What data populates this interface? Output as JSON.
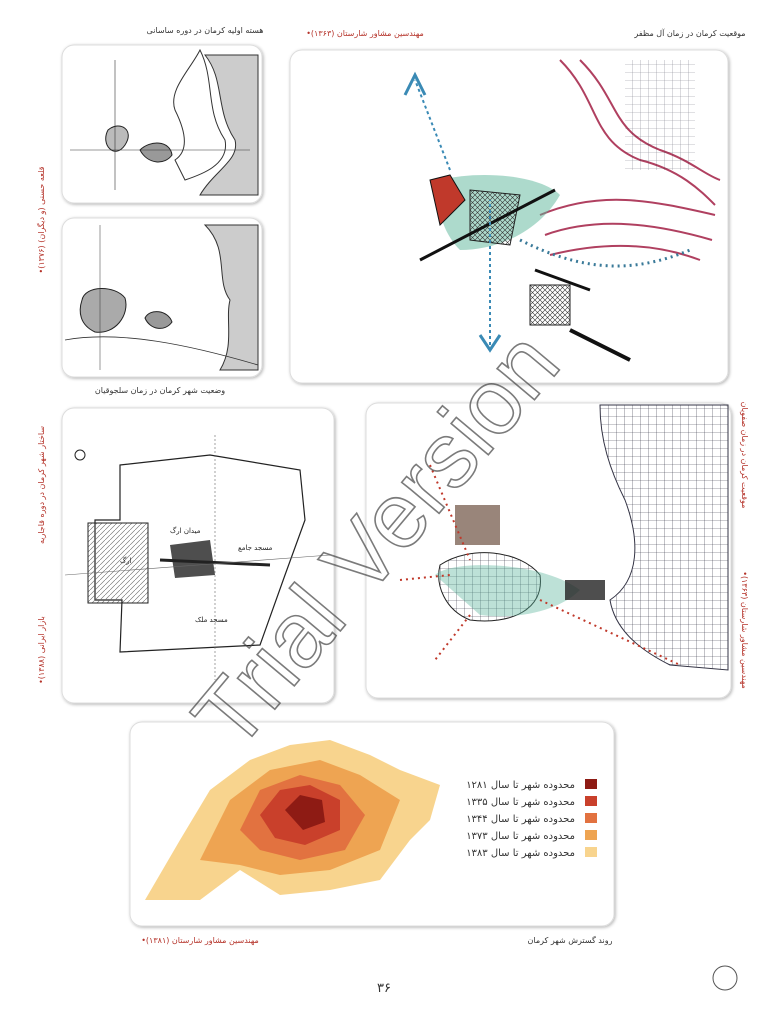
{
  "figures": {
    "sasanian": {
      "caption": "هسته اولیه کرمان در دوره ساسانی"
    },
    "seljuk": {
      "caption": "وضعیت شهر کرمان در زمان سلجوقیان",
      "source": "•قلعه حسنی (و دیگران) (۱۳۷۶)"
    },
    "mozaffarid": {
      "caption": "موقعیت کرمان در زمان آل مظفر",
      "source": "•مهندسین مشاور شارستان (۱۳۶۳)"
    },
    "qajar": {
      "caption": "ساختار شهر کرمان در دوره قاجاریه",
      "source": "•بازار ایرانی (۱۳۸۸)",
      "labels": [
        "میدان ارگ",
        "مسجد جامع",
        "مسجد ملک",
        "ارگ"
      ]
    },
    "safavid": {
      "caption": "موقعیت کرمان در زمان صفویان",
      "source": "•مهندسین مشاور شارستان (۱۳۶۳)"
    },
    "growth": {
      "caption": "روند گسترش شهر کرمان",
      "source": "•مهندسین مشاور شارستان (۱۳۸۱)",
      "legend": [
        {
          "label": "محدوده شهر تا سال ۱۲۸۱",
          "color": "#8e1b14"
        },
        {
          "label": "محدوده شهر تا سال ۱۳۳۵",
          "color": "#c9402b"
        },
        {
          "label": "محدوده شهر تا سال ۱۳۴۴",
          "color": "#e27240"
        },
        {
          "label": "محدوده شهر تا سال ۱۳۷۳",
          "color": "#eea452"
        },
        {
          "label": "محدوده شهر تا سال ۱۳۸۳",
          "color": "#f8d48e"
        }
      ]
    }
  },
  "page_number": "۳۶",
  "watermark": "Trial Version"
}
